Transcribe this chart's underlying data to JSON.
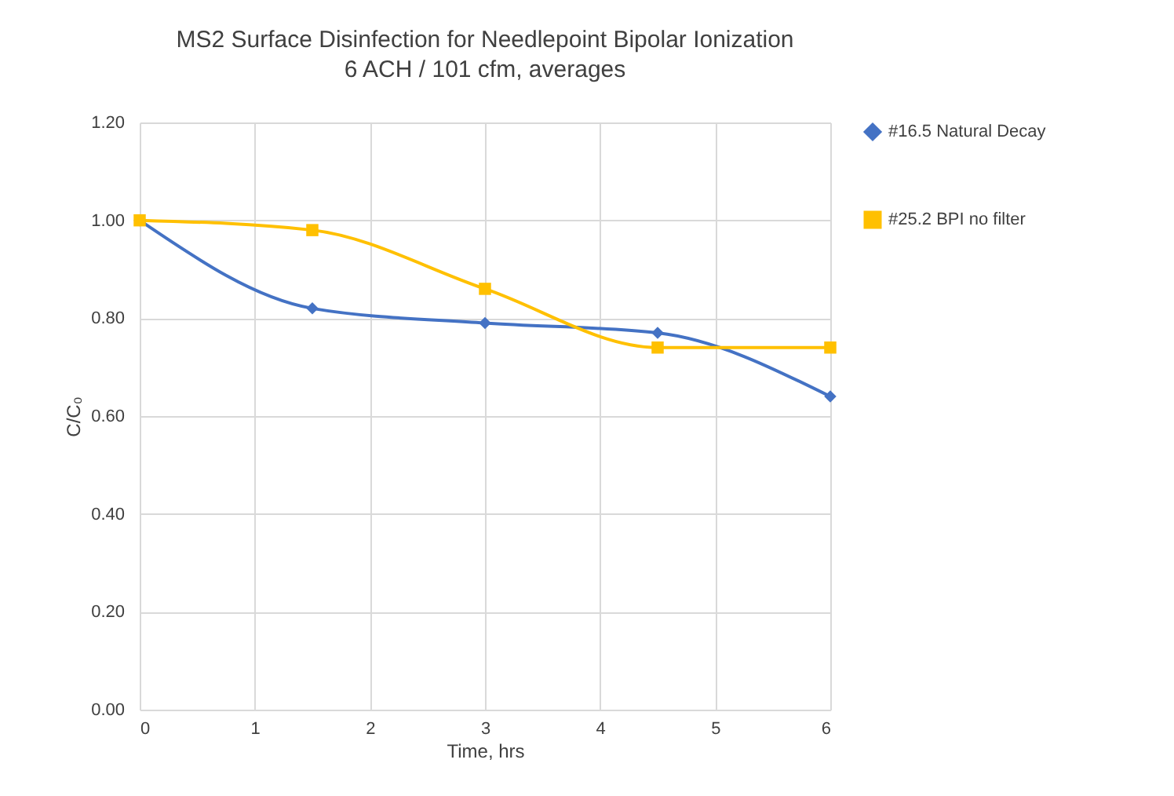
{
  "chart_data": {
    "type": "line",
    "title": "MS2 Surface Disinfection for Needlepoint Bipolar Ionization",
    "subtitle": "6 ACH / 101 cfm, averages",
    "xlabel": "Time, hrs",
    "ylabel": "C/C₀",
    "x": [
      0,
      1.5,
      3,
      4.5,
      6
    ],
    "series": [
      {
        "name": "#16.5 Natural Decay",
        "color": "#4472c4",
        "marker": "diamond",
        "values": [
          1.0,
          0.82,
          0.79,
          0.77,
          0.64
        ]
      },
      {
        "name": "#25.2 BPI no filter",
        "color": "#ffc000",
        "marker": "square",
        "values": [
          1.0,
          0.98,
          0.86,
          0.74,
          0.74
        ]
      }
    ],
    "xlim": [
      0,
      6
    ],
    "xticks": [
      0,
      1,
      2,
      3,
      4,
      5,
      6
    ],
    "ylim": [
      0,
      1.2
    ],
    "yticks": [
      {
        "value": 0,
        "label": "0.00"
      },
      {
        "value": 0.2,
        "label": "0.20"
      },
      {
        "value": 0.4,
        "label": "0.40"
      },
      {
        "value": 0.6,
        "label": "0.60"
      },
      {
        "value": 0.8,
        "label": "0.80"
      },
      {
        "value": 1.0,
        "label": "1.00"
      },
      {
        "value": 1.2,
        "label": "1.20"
      }
    ],
    "grid": true,
    "legend": "right",
    "line_style": "solid"
  }
}
